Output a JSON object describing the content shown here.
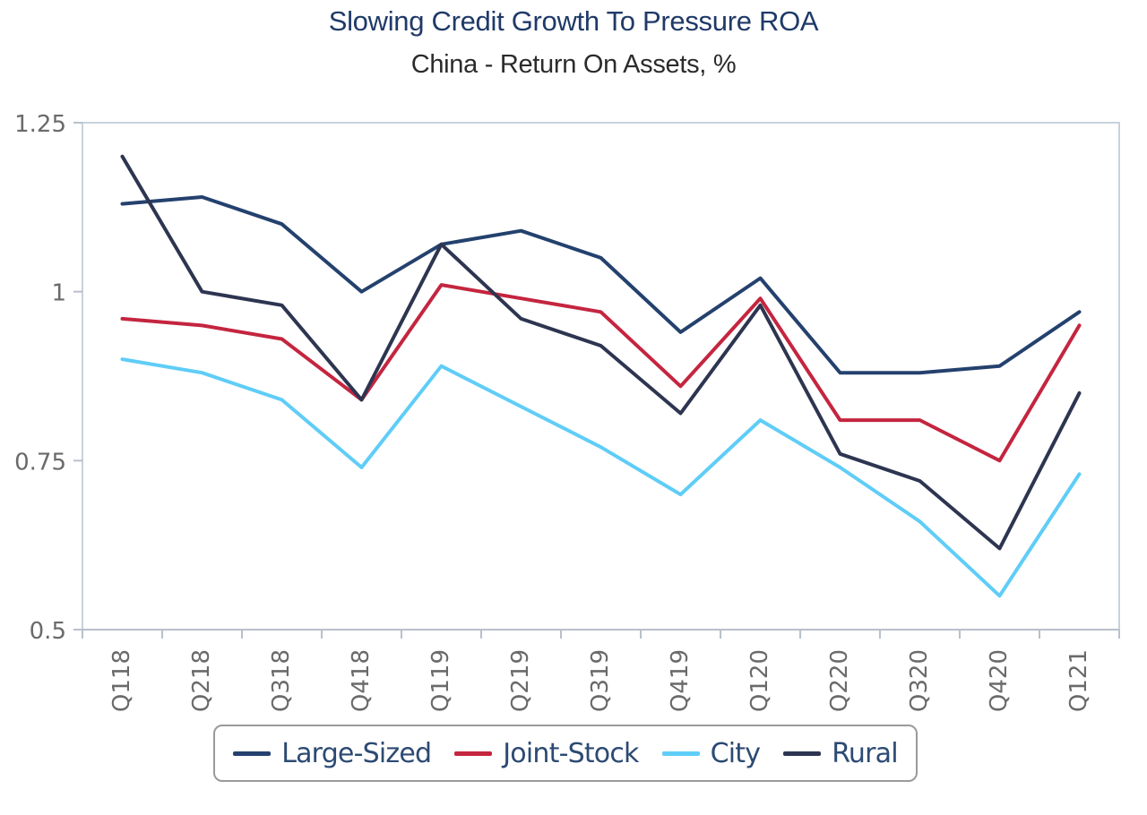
{
  "chart_data": {
    "type": "line",
    "title": "Slowing Credit Growth To Pressure ROA",
    "subtitle": "China - Return On Assets, %",
    "categories": [
      "Q118",
      "Q218",
      "Q318",
      "Q418",
      "Q119",
      "Q219",
      "Q319",
      "Q419",
      "Q120",
      "Q220",
      "Q320",
      "Q420",
      "Q121"
    ],
    "ylim": [
      0.5,
      1.25
    ],
    "yticks": [
      0.5,
      0.75,
      1,
      1.25
    ],
    "ytick_labels": [
      "0.5",
      "0.75",
      "1",
      "1.25"
    ],
    "grid": false,
    "legend_position": "bottom",
    "series": [
      {
        "name": "Large-Sized",
        "color": "#24416e",
        "values": [
          1.13,
          1.14,
          1.1,
          1.0,
          1.07,
          1.09,
          1.05,
          0.94,
          1.02,
          0.88,
          0.88,
          0.89,
          0.97
        ]
      },
      {
        "name": "Joint-Stock",
        "color": "#c4253f",
        "values": [
          0.96,
          0.95,
          0.93,
          0.84,
          1.01,
          0.99,
          0.97,
          0.86,
          0.99,
          0.81,
          0.81,
          0.75,
          0.95
        ]
      },
      {
        "name": "City",
        "color": "#5fcdf7",
        "values": [
          0.9,
          0.88,
          0.84,
          0.74,
          0.89,
          0.83,
          0.77,
          0.7,
          0.81,
          0.74,
          0.66,
          0.55,
          0.73
        ]
      },
      {
        "name": "Rural",
        "color": "#2d3550",
        "values": [
          1.2,
          1.0,
          0.98,
          0.84,
          1.07,
          0.96,
          0.92,
          0.82,
          0.98,
          0.76,
          0.72,
          0.62,
          0.85
        ]
      }
    ]
  }
}
